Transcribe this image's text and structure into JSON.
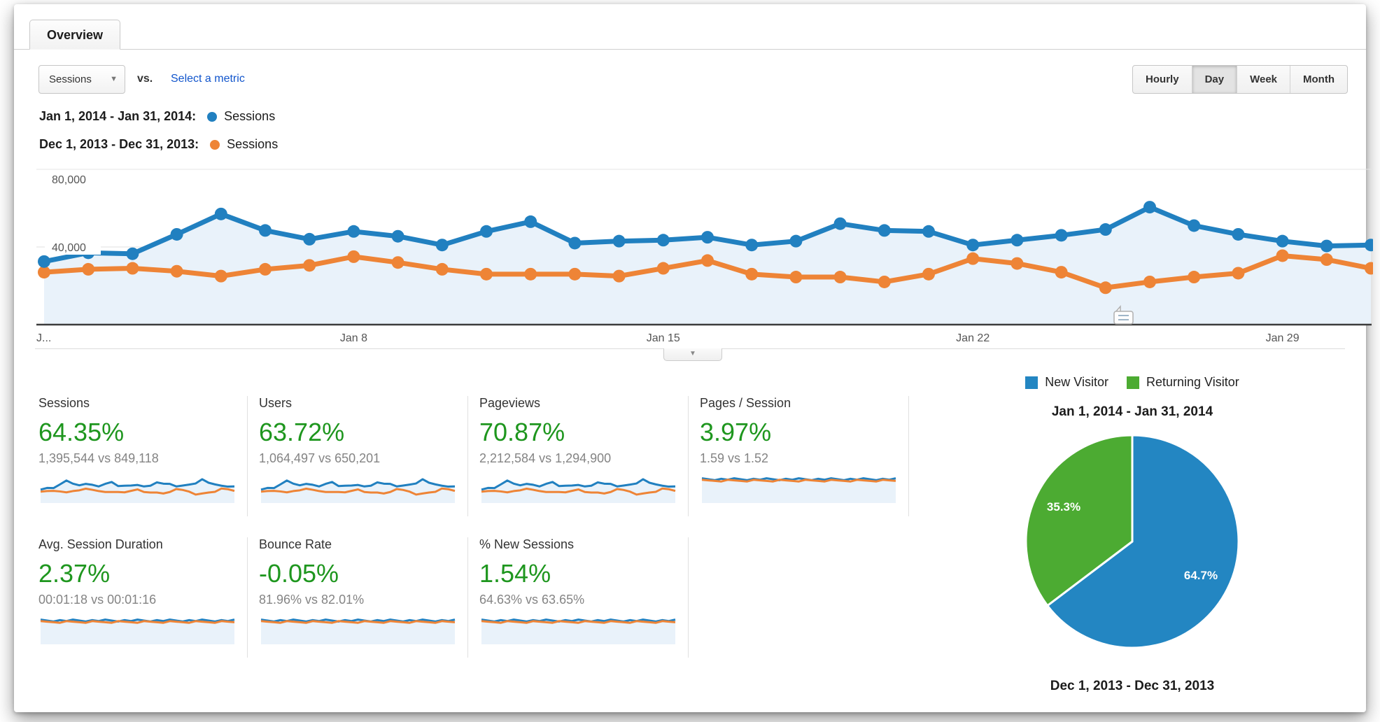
{
  "tab": {
    "label": "Overview"
  },
  "toolbar": {
    "metric_selector_value": "Sessions",
    "vs_label": "vs.",
    "select_metric_link": "Select a metric",
    "granularity_options": [
      "Hourly",
      "Day",
      "Week",
      "Month"
    ],
    "granularity_selected": "Day"
  },
  "comparison_legend": [
    {
      "date_range": "Jan 1, 2014 - Jan 31, 2014:",
      "metric": "Sessions",
      "color": "#2180c0"
    },
    {
      "date_range": "Dec 1, 2013 - Dec 31, 2013:",
      "metric": "Sessions",
      "color": "#ee8436"
    }
  ],
  "chart_data": [
    {
      "type": "line",
      "title": "Sessions by day — Jan 1, 2014 - Jan 31, 2014 vs Dec 1, 2013 - Dec 31, 2013",
      "x_days": [
        1,
        2,
        3,
        4,
        5,
        6,
        7,
        8,
        9,
        10,
        11,
        12,
        13,
        14,
        15,
        16,
        17,
        18,
        19,
        20,
        21,
        22,
        23,
        24,
        25,
        26,
        27,
        28,
        29,
        30,
        31
      ],
      "xtick_labels": [
        {
          "label": "J...",
          "day": 1
        },
        {
          "label": "Jan 8",
          "day": 8
        },
        {
          "label": "Jan 15",
          "day": 15
        },
        {
          "label": "Jan 22",
          "day": 22
        },
        {
          "label": "Jan 29",
          "day": 29
        }
      ],
      "ylim": [
        0,
        80000
      ],
      "ytick_labels": [
        "40,000",
        "80,000"
      ],
      "grid": true,
      "has_collapsed_annotation_marker": true,
      "series": [
        {
          "name": "Sessions — Jan 1, 2014 - Jan 31, 2014",
          "color": "#2180c0",
          "values": [
            32500,
            37000,
            36500,
            46500,
            57000,
            48500,
            44000,
            48000,
            45500,
            41000,
            48000,
            53000,
            42000,
            43000,
            43500,
            45000,
            41000,
            43000,
            52000,
            48500,
            48000,
            41000,
            43500,
            46000,
            49000,
            60500,
            51000,
            46500,
            43000,
            40500,
            41000
          ]
        },
        {
          "name": "Sessions — Dec 1, 2013 - Dec 31, 2013",
          "color": "#ee8436",
          "values": [
            27000,
            28500,
            29000,
            27500,
            25000,
            28500,
            30500,
            35000,
            32000,
            28500,
            26000,
            26000,
            26000,
            25000,
            29000,
            33000,
            26000,
            24500,
            24500,
            22000,
            26000,
            34000,
            31500,
            27000,
            19000,
            22000,
            24500,
            26500,
            35500,
            33500,
            29000
          ]
        }
      ]
    },
    {
      "type": "pie",
      "title": "Jan 1, 2014 - Jan 31, 2014",
      "footer_title": "Dec 1, 2013 - Dec 31, 2013",
      "legend": [
        "New Visitor",
        "Returning Visitor"
      ],
      "labels": [
        "New Visitor",
        "Returning Visitor"
      ],
      "values_percent": [
        64.7,
        35.3
      ],
      "colors": [
        "#2386c2",
        "#4cab32"
      ],
      "start": "12 o'clock, clockwise"
    }
  ],
  "scorecards": [
    {
      "row": 1,
      "title": "Sessions",
      "delta": "64.35%",
      "comparison": "1,395,544 vs 849,118",
      "spark_shape": "paired"
    },
    {
      "row": 1,
      "title": "Users",
      "delta": "63.72%",
      "comparison": "1,064,497 vs 650,201",
      "spark_shape": "paired"
    },
    {
      "row": 1,
      "title": "Pageviews",
      "delta": "70.87%",
      "comparison": "2,212,584 vs 1,294,900",
      "spark_shape": "paired"
    },
    {
      "row": 1,
      "title": "Pages / Session",
      "delta": "3.97%",
      "comparison": "1.59 vs 1.52",
      "spark_shape": "flat"
    },
    {
      "row": 2,
      "title": "Avg. Session Duration",
      "delta": "2.37%",
      "comparison": "00:01:18 vs 00:01:16",
      "spark_shape": "flat"
    },
    {
      "row": 2,
      "title": "Bounce Rate",
      "delta": "-0.05%",
      "comparison": "81.96% vs 82.01%",
      "spark_shape": "flat"
    },
    {
      "row": 2,
      "title": "% New Sessions",
      "delta": "1.54%",
      "comparison": "64.63% vs 63.65%",
      "spark_shape": "flat"
    }
  ],
  "colors": {
    "line_blue": "#2180c0",
    "line_orange": "#ee8436",
    "pie_blue": "#2386c2",
    "pie_green": "#4cab32",
    "delta_green": "#1e961e",
    "link_blue": "#1155cc",
    "area_fill": "#e9f2fa"
  }
}
